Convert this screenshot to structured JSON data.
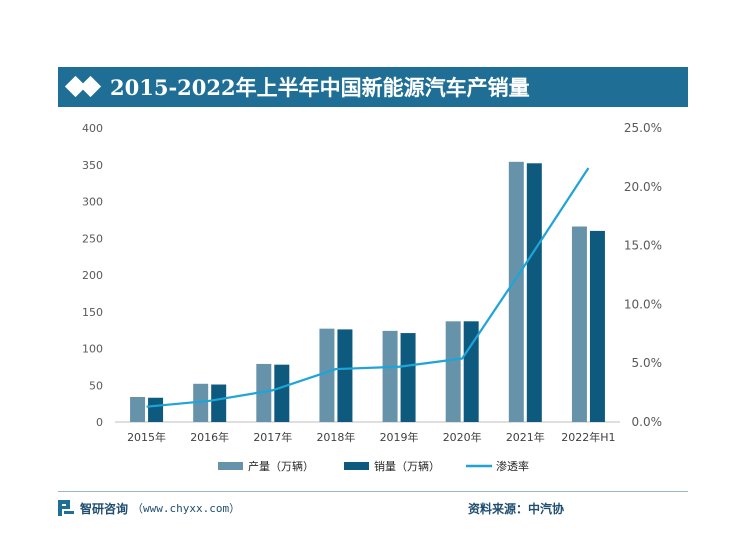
{
  "title": "2015-2022年上半年中国新能源汽车产销量",
  "footer": {
    "brand": "智研咨询",
    "url": "（www.chyxx.com）",
    "source": "资料来源：中汽协"
  },
  "colors": {
    "title_bg": "#1f6e96",
    "production": "#6793aa",
    "sales": "#0e5a7e",
    "penetration": "#1fa4d8"
  },
  "chart_data": {
    "type": "bar",
    "title": "2015-2022年上半年中国新能源汽车产销量",
    "categories": [
      "2015年",
      "2016年",
      "2017年",
      "2018年",
      "2019年",
      "2020年",
      "2021年",
      "2022年H1"
    ],
    "series": [
      {
        "name": "产量（万辆）",
        "type": "bar",
        "axis": "left",
        "values": [
          34,
          52,
          79,
          127,
          124,
          137,
          354,
          266
        ]
      },
      {
        "name": "销量（万辆）",
        "type": "bar",
        "axis": "left",
        "values": [
          33,
          51,
          78,
          126,
          121,
          137,
          352,
          260
        ]
      },
      {
        "name": "渗透率",
        "type": "line",
        "axis": "right",
        "values": [
          1.3,
          1.8,
          2.7,
          4.5,
          4.7,
          5.4,
          13.4,
          21.6
        ]
      }
    ],
    "y_left": {
      "ticks": [
        0,
        50,
        100,
        150,
        200,
        250,
        300,
        350,
        400
      ],
      "ylim": [
        0,
        400
      ]
    },
    "y_right": {
      "ticks": [
        "0.0%",
        "5.0%",
        "10.0%",
        "15.0%",
        "20.0%",
        "25.0%"
      ],
      "ylim": [
        0,
        25
      ]
    },
    "legend_position": "bottom",
    "grid": false
  }
}
